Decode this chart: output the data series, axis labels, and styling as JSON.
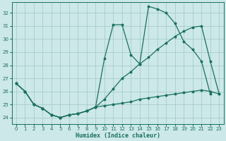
{
  "xlabel": "Humidex (Indice chaleur)",
  "bg_color": "#cce8e8",
  "grid_color": "#aacccc",
  "line_color": "#1a7060",
  "xlim": [
    -0.5,
    23.5
  ],
  "ylim": [
    23.5,
    32.8
  ],
  "yticks": [
    24,
    25,
    26,
    27,
    28,
    29,
    30,
    31,
    32
  ],
  "xticks": [
    0,
    1,
    2,
    3,
    4,
    5,
    6,
    7,
    8,
    9,
    10,
    11,
    12,
    13,
    14,
    15,
    16,
    17,
    18,
    19,
    20,
    21,
    22,
    23
  ],
  "s1_x": [
    0,
    1,
    2,
    3,
    4,
    5,
    6,
    7,
    8,
    9,
    10,
    11,
    12,
    13,
    14,
    15,
    16,
    17,
    18,
    19,
    20,
    21,
    22
  ],
  "s1_y": [
    26.6,
    26.0,
    25.0,
    24.7,
    24.2,
    24.0,
    24.2,
    24.3,
    24.5,
    24.8,
    28.5,
    31.1,
    31.1,
    28.8,
    28.1,
    32.5,
    32.3,
    32.0,
    31.2,
    29.8,
    29.2,
    28.3,
    25.8
  ],
  "s2_x": [
    0,
    1,
    2,
    3,
    4,
    5,
    6,
    7,
    8,
    9,
    10,
    11,
    12,
    13,
    14,
    15,
    16,
    17,
    18,
    19,
    20,
    21,
    22,
    23
  ],
  "s2_y": [
    26.6,
    26.0,
    25.0,
    24.7,
    24.2,
    24.0,
    24.2,
    24.3,
    24.5,
    24.8,
    24.9,
    25.0,
    25.1,
    25.2,
    25.4,
    25.5,
    25.6,
    25.7,
    25.8,
    25.9,
    26.0,
    26.1,
    26.0,
    25.8
  ],
  "s3_x": [
    0,
    1,
    2,
    3,
    4,
    5,
    6,
    7,
    8,
    9,
    10,
    11,
    12,
    13,
    14,
    15,
    16,
    17,
    18,
    19,
    20,
    21,
    22,
    23
  ],
  "s3_y": [
    26.6,
    26.0,
    25.0,
    24.7,
    24.2,
    24.0,
    24.2,
    24.3,
    24.5,
    24.8,
    25.4,
    26.2,
    27.0,
    27.5,
    28.1,
    28.6,
    29.2,
    29.7,
    30.2,
    30.6,
    30.9,
    31.0,
    28.3,
    25.8
  ]
}
